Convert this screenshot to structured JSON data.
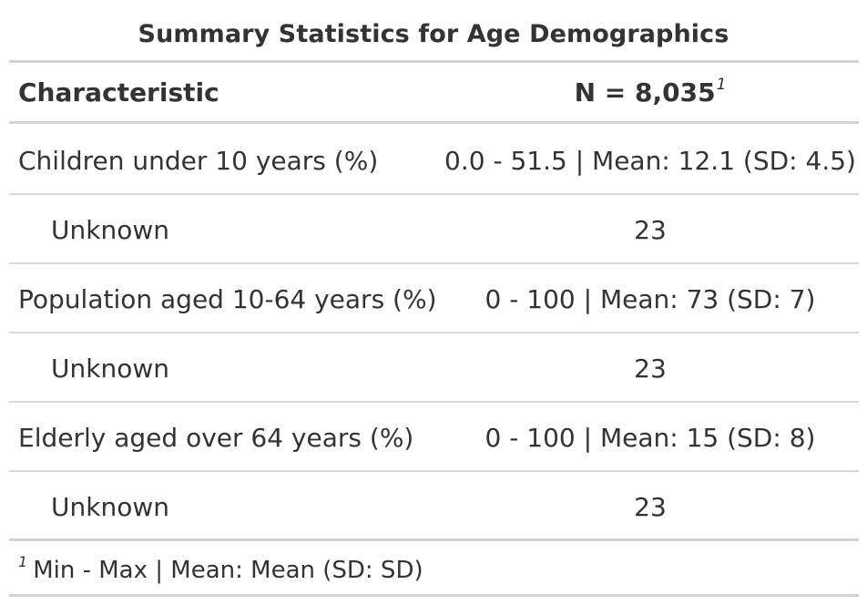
{
  "title": "Summary Statistics for Age Demographics",
  "header": {
    "characteristic": "Characteristic",
    "n_label": "N = 8,035",
    "n_footnote_mark": "1"
  },
  "rows": [
    {
      "label": "Children under 10 years (%)",
      "value": "0.0 - 51.5 | Mean: 12.1 (SD: 4.5)"
    },
    {
      "label": "Unknown",
      "value": "23"
    },
    {
      "label": "Population aged 10-64 years (%)",
      "value": "0 - 100 | Mean: 73 (SD: 7)"
    },
    {
      "label": "Unknown",
      "value": "23"
    },
    {
      "label": "Elderly aged over 64 years (%)",
      "value": "0 - 100 | Mean: 15 (SD: 8)"
    },
    {
      "label": "Unknown",
      "value": "23"
    }
  ],
  "footnote": {
    "mark": "1",
    "text": "Min - Max | Mean: Mean (SD: SD)"
  }
}
